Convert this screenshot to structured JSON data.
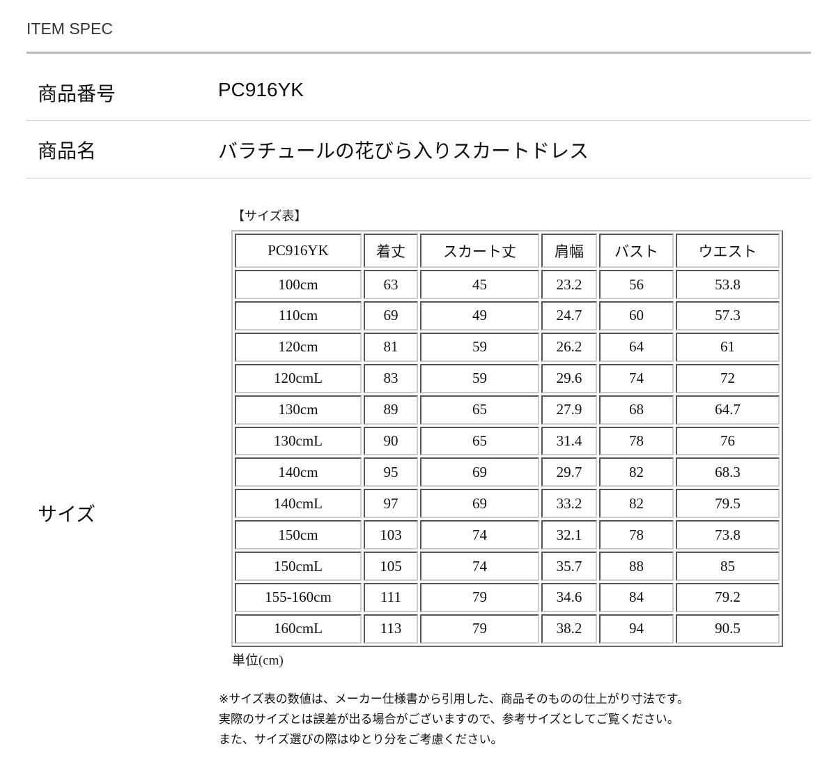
{
  "header": {
    "title": "ITEM SPEC"
  },
  "spec": {
    "item_number_label": "商品番号",
    "item_number": "PC916YK",
    "item_name_label": "商品名",
    "item_name": "バラチュールの花びら入りスカートドレス",
    "size_label": "サイズ"
  },
  "size_table": {
    "caption": "【サイズ表】",
    "columns": [
      "PC916YK",
      "着丈",
      "スカート丈",
      "肩幅",
      "バスト",
      "ウエスト"
    ],
    "rows": [
      [
        "100cm",
        "63",
        "45",
        "23.2",
        "56",
        "53.8"
      ],
      [
        "110cm",
        "69",
        "49",
        "24.7",
        "60",
        "57.3"
      ],
      [
        "120cm",
        "81",
        "59",
        "26.2",
        "64",
        "61"
      ],
      [
        "120cmL",
        "83",
        "59",
        "29.6",
        "74",
        "72"
      ],
      [
        "130cm",
        "89",
        "65",
        "27.9",
        "68",
        "64.7"
      ],
      [
        "130cmL",
        "90",
        "65",
        "31.4",
        "78",
        "76"
      ],
      [
        "140cm",
        "95",
        "69",
        "29.7",
        "82",
        "68.3"
      ],
      [
        "140cmL",
        "97",
        "69",
        "33.2",
        "82",
        "79.5"
      ],
      [
        "150cm",
        "103",
        "74",
        "32.1",
        "78",
        "73.8"
      ],
      [
        "150cmL",
        "105",
        "74",
        "35.7",
        "88",
        "85"
      ],
      [
        "155-160cm",
        "111",
        "79",
        "34.6",
        "84",
        "79.2"
      ],
      [
        "160cmL",
        "113",
        "79",
        "38.2",
        "94",
        "90.5"
      ]
    ],
    "unit": "単位(cm)"
  },
  "notes": [
    "※サイズ表の数値は、メーカー仕様書から引用した、商品そのものの仕上がり寸法です。",
    "実際のサイズとは誤差が出る場合がございますので、参考サイズとしてご覧ください。",
    "また、サイズ選びの際はゆとり分をご考慮ください。"
  ]
}
